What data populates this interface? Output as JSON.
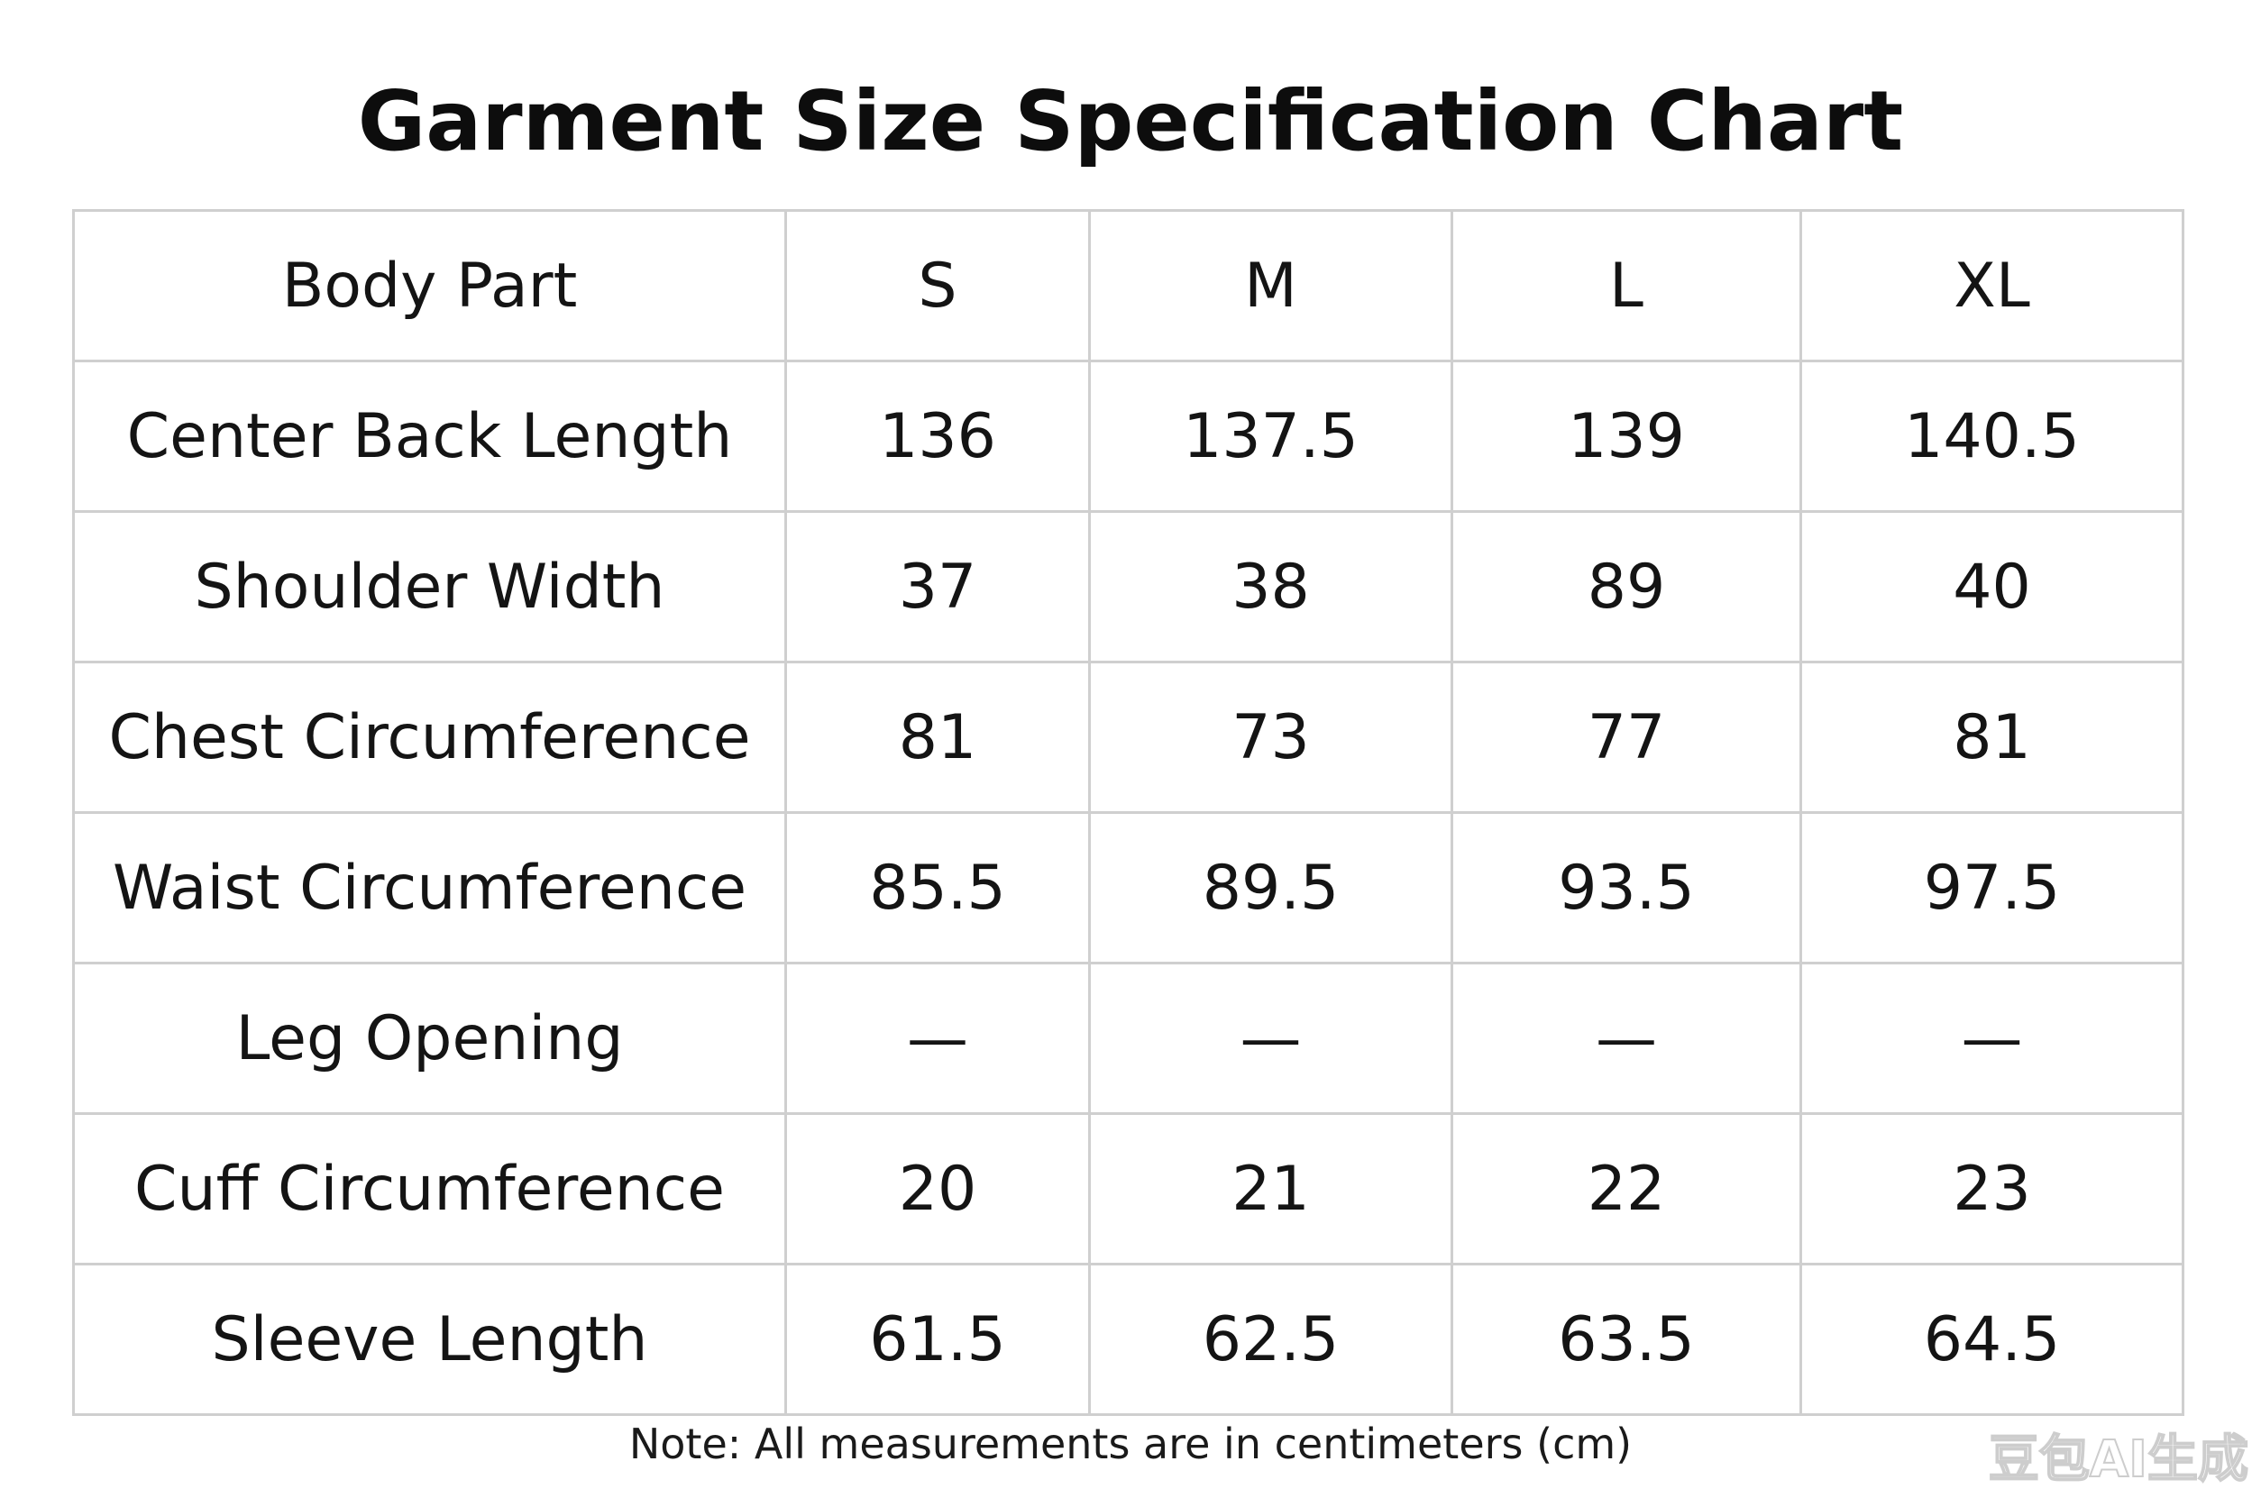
{
  "title": "Garment Size Specification Chart",
  "chart_data": {
    "type": "table",
    "title": "Garment Size Specification Chart",
    "columns": [
      "Body Part",
      "S",
      "M",
      "L",
      "XL"
    ],
    "rows": [
      {
        "label": "Center Back Length",
        "values": [
          "136",
          "137.5",
          "139",
          "140.5"
        ]
      },
      {
        "label": "Shoulder Width",
        "values": [
          "37",
          "38",
          "89",
          "40"
        ]
      },
      {
        "label": "Chest Circumference",
        "values": [
          "81",
          "73",
          "77",
          "81"
        ]
      },
      {
        "label": "Waist Circumference",
        "values": [
          "85.5",
          "89.5",
          "93.5",
          "97.5"
        ]
      },
      {
        "label": "Leg Opening",
        "values": [
          "—",
          "—",
          "—",
          "—"
        ]
      },
      {
        "label": "Cuff Circumference",
        "values": [
          "20",
          "21",
          "22",
          "23"
        ]
      },
      {
        "label": "Sleeve Length",
        "values": [
          "61.5",
          "62.5",
          "63.5",
          "64.5"
        ]
      }
    ],
    "note": "Note: All measurements are in centimeters (cm)"
  },
  "watermark": "豆包AI生成"
}
